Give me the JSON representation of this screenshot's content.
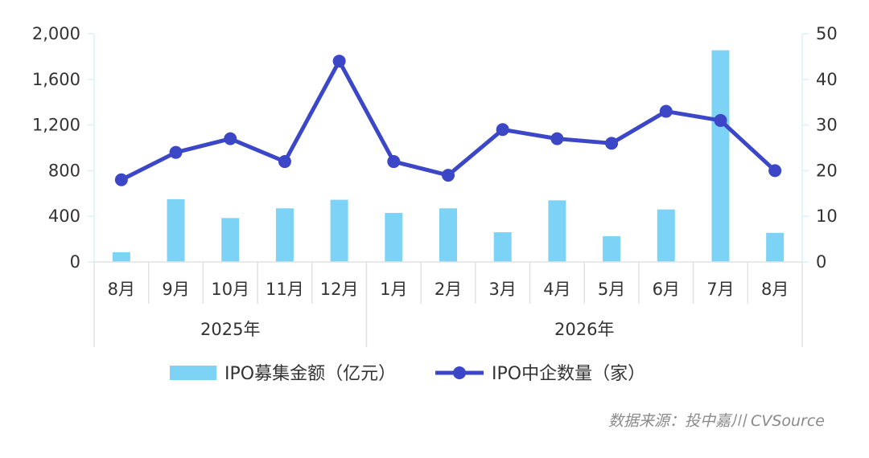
{
  "chart_data": {
    "type": "bar+line",
    "categories": [
      "8月",
      "9月",
      "10月",
      "11月",
      "12月",
      "1月",
      "2月",
      "3月",
      "4月",
      "5月",
      "6月",
      "7月",
      "8月"
    ],
    "groups": [
      {
        "label": "2025年",
        "from": 0,
        "to": 4
      },
      {
        "label": "2026年",
        "from": 5,
        "to": 12
      }
    ],
    "series": [
      {
        "name": "IPO募集金额（亿元）",
        "type": "bar",
        "axis": "left",
        "color": "#7dd3f5",
        "values": [
          85,
          550,
          385,
          470,
          545,
          430,
          470,
          260,
          540,
          225,
          460,
          1855,
          255
        ]
      },
      {
        "name": "IPO中企数量（家）",
        "type": "line",
        "axis": "right",
        "color": "#3b47c7",
        "values": [
          18,
          24,
          27,
          22,
          44,
          22,
          19,
          29,
          27,
          26,
          33,
          31,
          20
        ]
      }
    ],
    "y_left": {
      "min": 0,
      "max": 2000,
      "ticks": [
        0,
        400,
        800,
        1200,
        1600,
        2000
      ],
      "tick_labels": [
        "0",
        "400",
        "800",
        "1,200",
        "1,600",
        "2,000"
      ]
    },
    "y_right": {
      "min": 0,
      "max": 50,
      "ticks": [
        0,
        10,
        20,
        30,
        40,
        50
      ],
      "tick_labels": [
        "0",
        "10",
        "20",
        "30",
        "40",
        "50"
      ]
    },
    "legend": "bottom",
    "grid": false
  },
  "source": "数据来源：投中嘉川 CVSource"
}
